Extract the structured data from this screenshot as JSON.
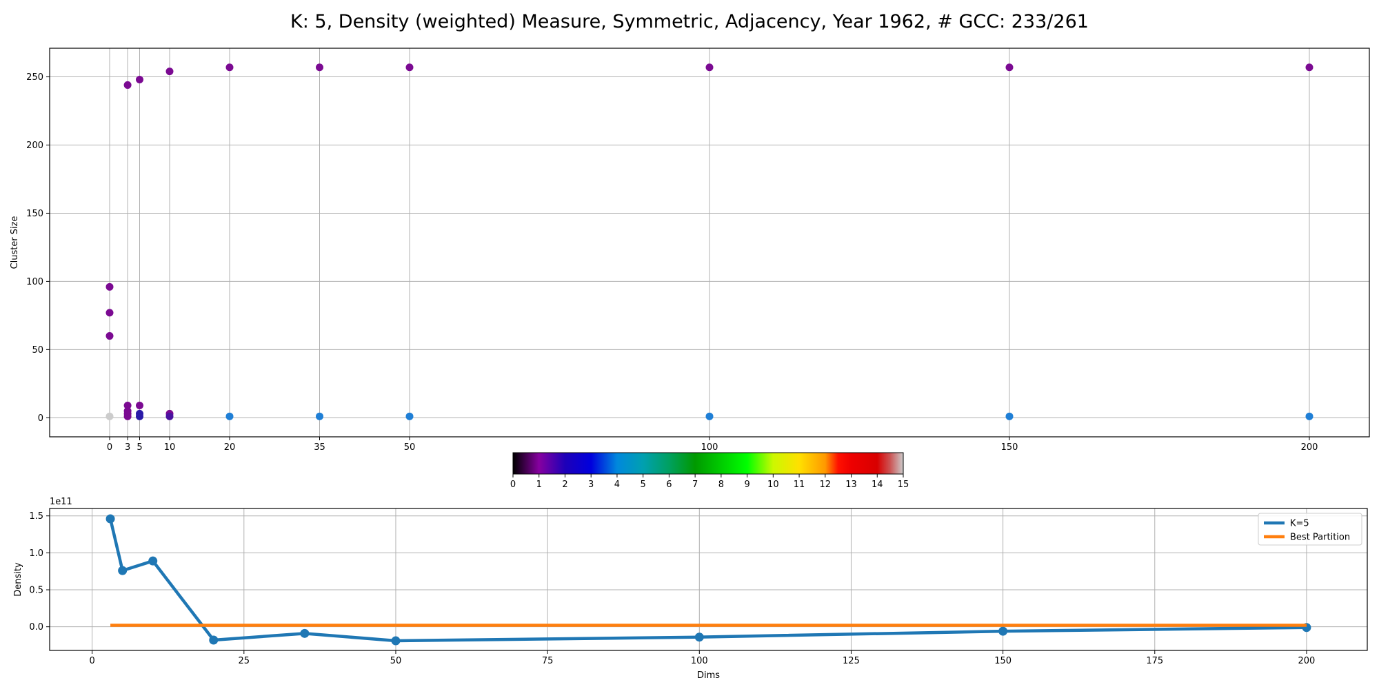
{
  "title": "K: 5, Density (weighted) Measure, Symmetric, Adjacency, Year 1962, # GCC: 233/261",
  "chart_data": [
    {
      "type": "scatter",
      "ylabel": "Cluster Size",
      "xlabel": "",
      "xlim": [
        -10,
        210
      ],
      "ylim": [
        -14,
        271
      ],
      "xticks": [
        0,
        3,
        5,
        10,
        20,
        35,
        50,
        100,
        150,
        200
      ],
      "yticks": [
        0,
        50,
        100,
        150,
        200,
        250
      ],
      "grid": true,
      "colormap": "nipy_spectral",
      "points": [
        {
          "x": 0,
          "y": 96,
          "color": "#7b0a92"
        },
        {
          "x": 0,
          "y": 77,
          "color": "#7b0a92"
        },
        {
          "x": 0,
          "y": 60,
          "color": "#7b0a92"
        },
        {
          "x": 0,
          "y": 1,
          "color": "#cccccc"
        },
        {
          "x": 3,
          "y": 244,
          "color": "#7b0a92"
        },
        {
          "x": 3,
          "y": 9,
          "color": "#7b0a92"
        },
        {
          "x": 3,
          "y": 5,
          "color": "#7b0a92"
        },
        {
          "x": 3,
          "y": 3,
          "color": "#7b0a92"
        },
        {
          "x": 3,
          "y": 1,
          "color": "#7b0a92"
        },
        {
          "x": 5,
          "y": 248,
          "color": "#7b0a92"
        },
        {
          "x": 5,
          "y": 9,
          "color": "#7b0a92"
        },
        {
          "x": 5,
          "y": 3,
          "color": "#2a1aa8"
        },
        {
          "x": 5,
          "y": 1,
          "color": "#2a1aa8"
        },
        {
          "x": 10,
          "y": 254,
          "color": "#7b0a92"
        },
        {
          "x": 10,
          "y": 3,
          "color": "#7b0a92"
        },
        {
          "x": 10,
          "y": 1,
          "color": "#4a12a0"
        },
        {
          "x": 20,
          "y": 257,
          "color": "#7b0a92"
        },
        {
          "x": 20,
          "y": 1,
          "color": "#1f7fd6"
        },
        {
          "x": 35,
          "y": 257,
          "color": "#7b0a92"
        },
        {
          "x": 35,
          "y": 1,
          "color": "#1f7fd6"
        },
        {
          "x": 50,
          "y": 257,
          "color": "#7b0a92"
        },
        {
          "x": 50,
          "y": 1,
          "color": "#1f7fd6"
        },
        {
          "x": 100,
          "y": 257,
          "color": "#7b0a92"
        },
        {
          "x": 100,
          "y": 1,
          "color": "#1f7fd6"
        },
        {
          "x": 150,
          "y": 257,
          "color": "#7b0a92"
        },
        {
          "x": 150,
          "y": 1,
          "color": "#1f7fd6"
        },
        {
          "x": 200,
          "y": 257,
          "color": "#7b0a92"
        },
        {
          "x": 200,
          "y": 1,
          "color": "#1f7fd6"
        }
      ]
    },
    {
      "type": "colorbar",
      "range": [
        0,
        15
      ],
      "ticks": [
        0,
        1,
        2,
        3,
        4,
        5,
        6,
        7,
        8,
        9,
        10,
        11,
        12,
        13,
        14,
        15
      ],
      "stops": [
        {
          "v": 0,
          "color": "#000000"
        },
        {
          "v": 1,
          "color": "#8600a0"
        },
        {
          "v": 2,
          "color": "#1e00b8"
        },
        {
          "v": 3,
          "color": "#0000dd"
        },
        {
          "v": 4,
          "color": "#0088dd"
        },
        {
          "v": 5,
          "color": "#00a0b0"
        },
        {
          "v": 6,
          "color": "#00a060"
        },
        {
          "v": 7,
          "color": "#009900"
        },
        {
          "v": 8,
          "color": "#00cc00"
        },
        {
          "v": 9,
          "color": "#00ff00"
        },
        {
          "v": 10,
          "color": "#ccf800"
        },
        {
          "v": 11,
          "color": "#ffe000"
        },
        {
          "v": 12,
          "color": "#ff9900"
        },
        {
          "v": 12.5,
          "color": "#ff1000"
        },
        {
          "v": 13,
          "color": "#ee0000"
        },
        {
          "v": 14,
          "color": "#d80000"
        },
        {
          "v": 14.5,
          "color": "#cc5555"
        },
        {
          "v": 15,
          "color": "#cccccc"
        }
      ]
    },
    {
      "type": "line",
      "xlabel": "Dims",
      "ylabel": "Density",
      "yscale_label": "1e11",
      "xlim": [
        -7,
        210
      ],
      "ylim": [
        -0.32,
        1.6
      ],
      "xticks": [
        0,
        25,
        50,
        75,
        100,
        125,
        150,
        175,
        200
      ],
      "yticks": [
        0.0,
        0.5,
        1.0,
        1.5
      ],
      "ytick_labels": [
        "0.0",
        "0.5",
        "1.0",
        "1.5"
      ],
      "grid": true,
      "legend_position": "top-right",
      "series": [
        {
          "name": "K=5",
          "color": "#1f77b4",
          "markers": true,
          "x": [
            3,
            5,
            10,
            20,
            35,
            50,
            100,
            150,
            200
          ],
          "y": [
            1.46,
            0.76,
            0.89,
            -0.18,
            -0.09,
            -0.19,
            -0.14,
            -0.06,
            -0.01
          ]
        },
        {
          "name": "Best Partition",
          "color": "#ff7f0e",
          "markers": false,
          "x": [
            3,
            200
          ],
          "y": [
            0.02,
            0.02
          ]
        }
      ]
    }
  ]
}
